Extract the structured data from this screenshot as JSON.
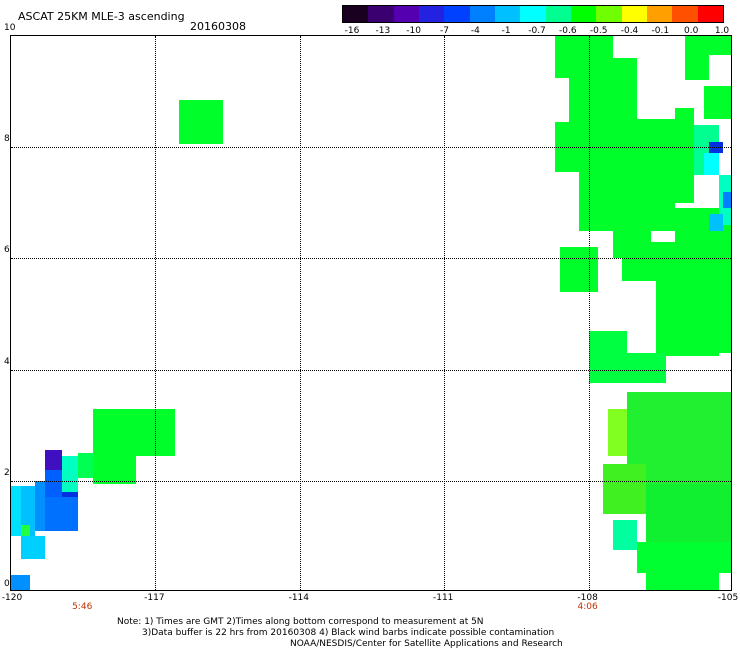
{
  "header": {
    "title": "ASCAT 25KM MLE-3 ascending",
    "date": "20160308"
  },
  "colorbar": {
    "labels": [
      "-16",
      "-13",
      "-10",
      "-7",
      "-4",
      "-1",
      "-0.7",
      "-0.6",
      "-0.5",
      "-0.4",
      "-0.1",
      "0.0",
      "1.0"
    ],
    "colors": [
      "#1a0020",
      "#3a0070",
      "#5500b0",
      "#2222e0",
      "#0040ff",
      "#0080ff",
      "#00c0ff",
      "#00ffff",
      "#00ff90",
      "#00ff00",
      "#70ff00",
      "#ffff00",
      "#ffa000",
      "#ff5000",
      "#ff0000"
    ]
  },
  "axes": {
    "x_labels": [
      "-120",
      "-117",
      "-114",
      "-111",
      "-108",
      "-105"
    ],
    "y_labels": [
      "0",
      "2",
      "4",
      "6",
      "8",
      "10"
    ],
    "x_range": [
      -120,
      -105
    ],
    "y_range": [
      0,
      10
    ],
    "time_labels": [
      {
        "lon": -118.5,
        "text": "5:46"
      },
      {
        "lon": -108,
        "text": "4:06"
      }
    ]
  },
  "notes": {
    "line1": "Note: 1) Times are GMT 2)Times along bottom correspond to measurement at 5N",
    "line2": "3)Data buffer is 22 hrs from 20160308 4) Black wind barbs indicate possible contamination",
    "line3": "NOAA/NESDIS/Center for Satellite Applications and Research"
  },
  "map_data": {
    "patches": [
      {
        "lon": [
          -116.5,
          -115.6
        ],
        "lat": [
          8.05,
          8.85
        ],
        "color": "#00ff2a"
      },
      {
        "lon": [
          -117.4,
          -116.6
        ],
        "lat": [
          2.45,
          3.3
        ],
        "color": "#00ff2a"
      },
      {
        "lon": [
          -118.3,
          -117.4
        ],
        "lat": [
          1.95,
          3.3
        ],
        "color": "#00ff2a"
      },
      {
        "lon": [
          -118.6,
          -118.3
        ],
        "lat": [
          2.05,
          2.5
        ],
        "color": "#00ff50"
      },
      {
        "lon": [
          -118.95,
          -118.6
        ],
        "lat": [
          1.8,
          2.45
        ],
        "color": "#00ffc0"
      },
      {
        "lon": [
          -119.3,
          -118.95
        ],
        "lat": [
          2.2,
          2.55
        ],
        "color": "#4010c0"
      },
      {
        "lon": [
          -119.3,
          -118.95
        ],
        "lat": [
          1.7,
          2.2
        ],
        "color": "#0060ff"
      },
      {
        "lon": [
          -118.95,
          -118.6
        ],
        "lat": [
          1.5,
          1.8
        ],
        "color": "#0030e0"
      },
      {
        "lon": [
          -119.3,
          -118.6
        ],
        "lat": [
          1.1,
          1.7
        ],
        "color": "#0070ff"
      },
      {
        "lon": [
          -119.5,
          -119.3
        ],
        "lat": [
          1.1,
          2.0
        ],
        "color": "#0090ff"
      },
      {
        "lon": [
          -119.8,
          -119.5
        ],
        "lat": [
          1.0,
          1.9
        ],
        "color": "#00c0ff"
      },
      {
        "lon": [
          -120.0,
          -119.8
        ],
        "lat": [
          1.0,
          1.9
        ],
        "color": "#00e0ff"
      },
      {
        "lon": [
          -119.8,
          -119.3
        ],
        "lat": [
          0.6,
          1.0
        ],
        "color": "#00d0ff"
      },
      {
        "lon": [
          -119.8,
          -119.6
        ],
        "lat": [
          1.0,
          1.2
        ],
        "color": "#20ff40"
      },
      {
        "lon": [
          -120.0,
          -119.6
        ],
        "lat": [
          0.0,
          0.3
        ],
        "color": "#0090ff"
      },
      {
        "lon": [
          -108.7,
          -107.5
        ],
        "lat": [
          9.25,
          10.0
        ],
        "color": "#00ff2a"
      },
      {
        "lon": [
          -108.4,
          -107.5
        ],
        "lat": [
          8.45,
          9.25
        ],
        "color": "#00ff2a"
      },
      {
        "lon": [
          -108.7,
          -107.0
        ],
        "lat": [
          7.55,
          8.45
        ],
        "color": "#00ff2a"
      },
      {
        "lon": [
          -107.5,
          -107.0
        ],
        "lat": [
          8.45,
          9.6
        ],
        "color": "#00ff2a"
      },
      {
        "lon": [
          -107.0,
          -106.2
        ],
        "lat": [
          7.0,
          8.5
        ],
        "color": "#00ff2a"
      },
      {
        "lon": [
          -108.2,
          -106.2
        ],
        "lat": [
          6.5,
          7.55
        ],
        "color": "#00ff2a"
      },
      {
        "lon": [
          -106.2,
          -105.8
        ],
        "lat": [
          7.0,
          8.7
        ],
        "color": "#00ff2a"
      },
      {
        "lon": [
          -106.0,
          -105.0
        ],
        "lat": [
          9.65,
          10.0
        ],
        "color": "#00ff2a"
      },
      {
        "lon": [
          -106.0,
          -105.5
        ],
        "lat": [
          9.2,
          9.65
        ],
        "color": "#00ff2a"
      },
      {
        "lon": [
          -105.6,
          -105.0
        ],
        "lat": [
          8.5,
          9.1
        ],
        "color": "#00ff2a"
      },
      {
        "lon": [
          -106.2,
          -105.0
        ],
        "lat": [
          6.3,
          6.9
        ],
        "color": "#00ff2a"
      },
      {
        "lon": [
          -107.5,
          -106.7
        ],
        "lat": [
          6.0,
          6.5
        ],
        "color": "#00ff2a"
      },
      {
        "lon": [
          -108.6,
          -107.8
        ],
        "lat": [
          5.4,
          6.2
        ],
        "color": "#00ff2a"
      },
      {
        "lon": [
          -107.3,
          -105.0
        ],
        "lat": [
          5.6,
          6.3
        ],
        "color": "#00ff2a"
      },
      {
        "lon": [
          -106.6,
          -105.0
        ],
        "lat": [
          4.65,
          5.6
        ],
        "color": "#00ff2a"
      },
      {
        "lon": [
          -106.6,
          -105.3
        ],
        "lat": [
          4.25,
          4.65
        ],
        "color": "#00ff2a"
      },
      {
        "lon": [
          -105.3,
          -105.0
        ],
        "lat": [
          4.3,
          4.65
        ],
        "color": "#00ff2a"
      },
      {
        "lon": [
          -105.8,
          -105.3
        ],
        "lat": [
          7.5,
          8.4
        ],
        "color": "#00ff90"
      },
      {
        "lon": [
          -105.5,
          -105.2
        ],
        "lat": [
          7.9,
          8.1
        ],
        "color": "#0030e0"
      },
      {
        "lon": [
          -105.6,
          -105.3
        ],
        "lat": [
          7.5,
          7.9
        ],
        "color": "#00ffff"
      },
      {
        "lon": [
          -105.3,
          -105.0
        ],
        "lat": [
          6.6,
          7.5
        ],
        "color": "#00ffc0"
      },
      {
        "lon": [
          -105.2,
          -105.0
        ],
        "lat": [
          6.9,
          7.2
        ],
        "color": "#0080ff"
      },
      {
        "lon": [
          -105.5,
          -105.2
        ],
        "lat": [
          6.5,
          6.8
        ],
        "color": "#00c0ff"
      },
      {
        "lon": [
          -108.0,
          -107.2
        ],
        "lat": [
          3.75,
          4.7
        ],
        "color": "#00ff40"
      },
      {
        "lon": [
          -107.2,
          -106.4
        ],
        "lat": [
          3.75,
          4.3
        ],
        "color": "#00ff40"
      },
      {
        "lon": [
          -107.2,
          -105.0
        ],
        "lat": [
          1.95,
          3.6
        ],
        "color": "#20f030"
      },
      {
        "lon": [
          -107.6,
          -107.2
        ],
        "lat": [
          2.45,
          3.3
        ],
        "color": "#80ff20"
      },
      {
        "lon": [
          -107.7,
          -106.8
        ],
        "lat": [
          1.4,
          2.3
        ],
        "color": "#40f020"
      },
      {
        "lon": [
          -106.8,
          -105.0
        ],
        "lat": [
          0.9,
          1.95
        ],
        "color": "#10f030"
      },
      {
        "lon": [
          -107.5,
          -107.0
        ],
        "lat": [
          0.75,
          1.3
        ],
        "color": "#00ffa0"
      },
      {
        "lon": [
          -107.0,
          -105.0
        ],
        "lat": [
          0.35,
          0.9
        ],
        "color": "#00ff30"
      },
      {
        "lon": [
          -106.8,
          -105.3
        ],
        "lat": [
          0.0,
          0.4
        ],
        "color": "#00ff30"
      }
    ]
  }
}
